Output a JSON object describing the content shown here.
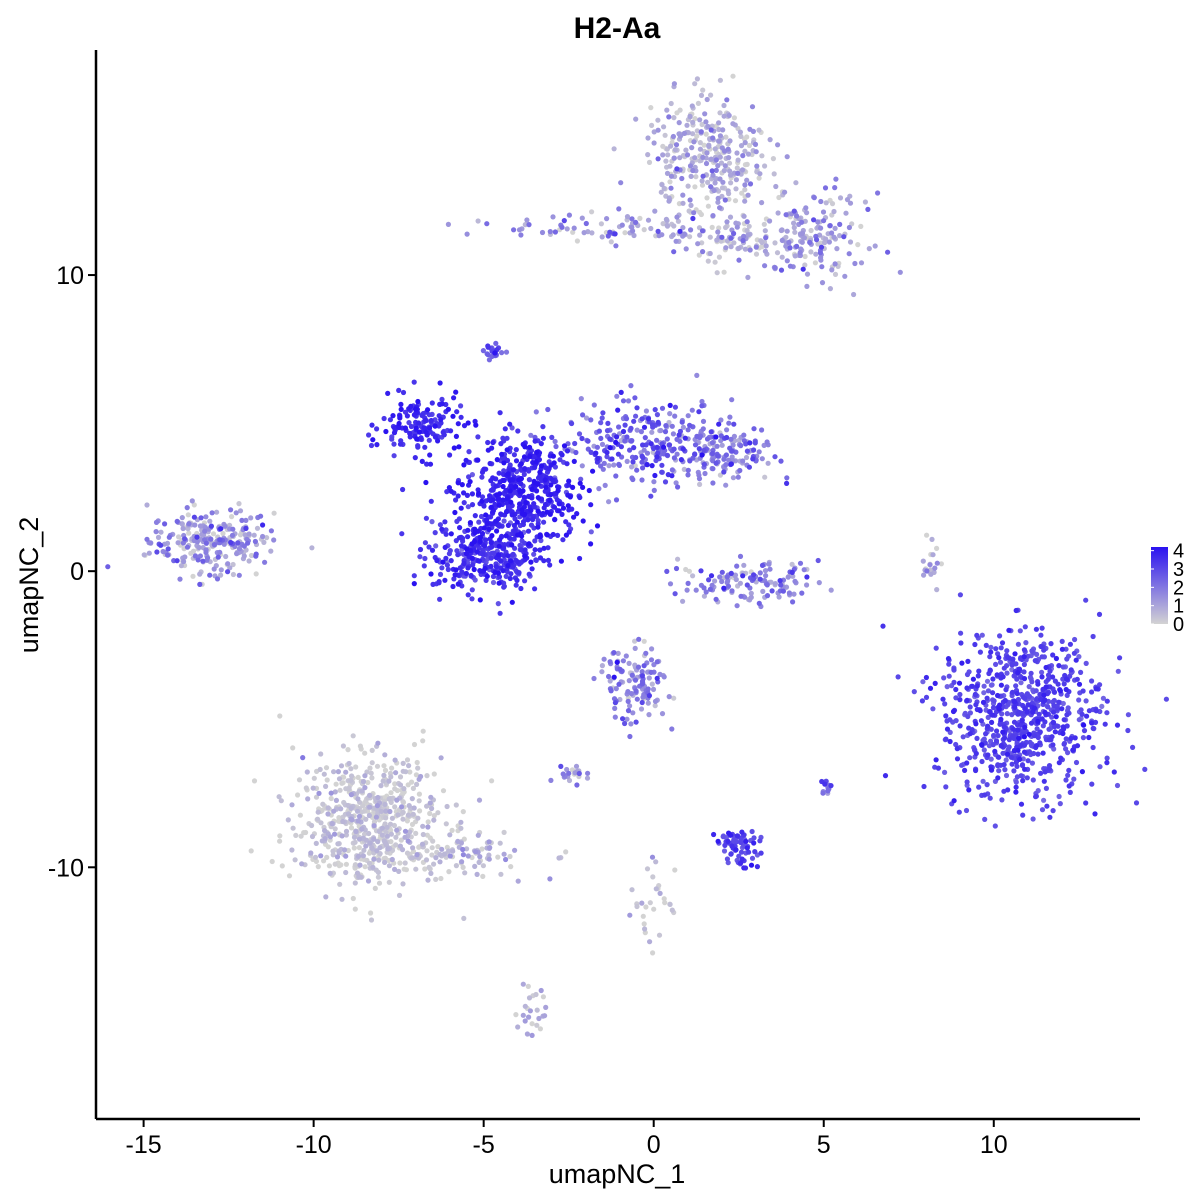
{
  "chart_data": {
    "type": "scatter",
    "title": "H2-Aa",
    "xlabel": "umapNC_1",
    "ylabel": "umapNC_2",
    "xlim": [
      -16.4,
      14.3
    ],
    "ylim": [
      -18.5,
      17.6
    ],
    "x_ticks": [
      -15,
      -10,
      -5,
      0,
      5,
      10
    ],
    "x_tick_labels": [
      "-15",
      "-10",
      "-5",
      "0",
      "5",
      "10"
    ],
    "y_ticks": [
      -10,
      0,
      10
    ],
    "y_tick_labels": [
      "-10",
      "0",
      "10"
    ],
    "grid": false,
    "legend": {
      "position": "right",
      "type": "colorbar",
      "labels": [
        "4",
        "3",
        "2",
        "1",
        "0"
      ],
      "range": [
        0,
        4.2
      ]
    },
    "color_low": "#d3d3d3",
    "color_high": "#2a12f0",
    "clusters": [
      {
        "name": "cluster-left",
        "center": [
          -13.0,
          1.0
        ],
        "spread": [
          0.9,
          0.55
        ],
        "n": 260,
        "expr_mean": 1.2,
        "expr_sd": 0.9
      },
      {
        "name": "cluster-center-body",
        "center": [
          -4.0,
          2.6
        ],
        "spread": [
          0.9,
          1.0
        ],
        "n": 520,
        "expr_mean": 3.7,
        "expr_sd": 0.4
      },
      {
        "name": "cluster-center-arm-left",
        "center": [
          -6.8,
          4.9
        ],
        "spread": [
          0.6,
          0.5
        ],
        "n": 150,
        "expr_mean": 3.6,
        "expr_sd": 0.4
      },
      {
        "name": "cluster-center-lower",
        "center": [
          -5.0,
          0.5
        ],
        "spread": [
          0.8,
          0.6
        ],
        "n": 300,
        "expr_mean": 3.4,
        "expr_sd": 0.5
      },
      {
        "name": "cluster-center-arm-right",
        "center": [
          -0.3,
          4.3
        ],
        "spread": [
          1.3,
          0.7
        ],
        "n": 260,
        "expr_mean": 2.4,
        "expr_sd": 0.8
      },
      {
        "name": "cluster-center-top-right",
        "center": [
          2.0,
          4.0
        ],
        "spread": [
          0.8,
          0.5
        ],
        "n": 140,
        "expr_mean": 1.8,
        "expr_sd": 0.8
      },
      {
        "name": "cluster-top",
        "center": [
          1.6,
          14.0
        ],
        "spread": [
          0.9,
          1.0
        ],
        "n": 330,
        "expr_mean": 0.7,
        "expr_sd": 0.7
      },
      {
        "name": "cluster-top-right-arm",
        "center": [
          4.7,
          11.3
        ],
        "spread": [
          0.8,
          0.7
        ],
        "n": 170,
        "expr_mean": 1.1,
        "expr_sd": 0.8
      },
      {
        "name": "cluster-top-left-arm",
        "center": [
          -1.2,
          11.6
        ],
        "spread": [
          1.6,
          0.3
        ],
        "n": 90,
        "expr_mean": 1.2,
        "expr_sd": 0.9
      },
      {
        "name": "cluster-top-stem",
        "center": [
          2.2,
          11.2
        ],
        "spread": [
          0.8,
          0.4
        ],
        "n": 80,
        "expr_mean": 0.6,
        "expr_sd": 0.7
      },
      {
        "name": "cluster-arc",
        "center": [
          2.8,
          -0.4
        ],
        "spread": [
          1.0,
          0.35
        ],
        "n": 130,
        "expr_mean": 1.6,
        "expr_sd": 0.9
      },
      {
        "name": "cluster-right",
        "center": [
          10.8,
          -4.8
        ],
        "spread": [
          1.2,
          1.4
        ],
        "n": 760,
        "expr_mean": 3.1,
        "expr_sd": 0.4
      },
      {
        "name": "cluster-mid-lower",
        "center": [
          -0.6,
          -3.8
        ],
        "spread": [
          0.5,
          0.6
        ],
        "n": 130,
        "expr_mean": 1.6,
        "expr_sd": 0.8
      },
      {
        "name": "cluster-bottom-left",
        "center": [
          -8.4,
          -8.4
        ],
        "spread": [
          1.1,
          1.1
        ],
        "n": 620,
        "expr_mean": 0.25,
        "expr_sd": 0.4
      },
      {
        "name": "cluster-bottom-left-tail",
        "center": [
          -5.6,
          -9.6
        ],
        "spread": [
          1.1,
          0.35
        ],
        "n": 90,
        "expr_mean": 0.5,
        "expr_sd": 0.6
      },
      {
        "name": "cluster-small-purple",
        "center": [
          2.5,
          -9.3
        ],
        "spread": [
          0.35,
          0.3
        ],
        "n": 70,
        "expr_mean": 3.0,
        "expr_sd": 0.5
      },
      {
        "name": "cluster-top-small",
        "center": [
          -4.7,
          7.4
        ],
        "spread": [
          0.15,
          0.12
        ],
        "n": 22,
        "expr_mean": 2.8,
        "expr_sd": 0.5
      },
      {
        "name": "cluster-small-a",
        "center": [
          -2.5,
          -6.9
        ],
        "spread": [
          0.25,
          0.15
        ],
        "n": 22,
        "expr_mean": 1.2,
        "expr_sd": 0.8
      },
      {
        "name": "cluster-small-b",
        "center": [
          -3.6,
          -14.8
        ],
        "spread": [
          0.2,
          0.5
        ],
        "n": 25,
        "expr_mean": 0.6,
        "expr_sd": 0.6
      },
      {
        "name": "cluster-small-c",
        "center": [
          8.2,
          0.3
        ],
        "spread": [
          0.15,
          0.4
        ],
        "n": 20,
        "expr_mean": 0.8,
        "expr_sd": 0.8
      },
      {
        "name": "cluster-small-d",
        "center": [
          0.0,
          -11.2
        ],
        "spread": [
          0.4,
          0.8
        ],
        "n": 30,
        "expr_mean": 0.3,
        "expr_sd": 0.5
      },
      {
        "name": "cluster-small-e",
        "center": [
          5.1,
          -7.3
        ],
        "spread": [
          0.1,
          0.15
        ],
        "n": 12,
        "expr_mean": 2.5,
        "expr_sd": 0.6
      }
    ]
  }
}
